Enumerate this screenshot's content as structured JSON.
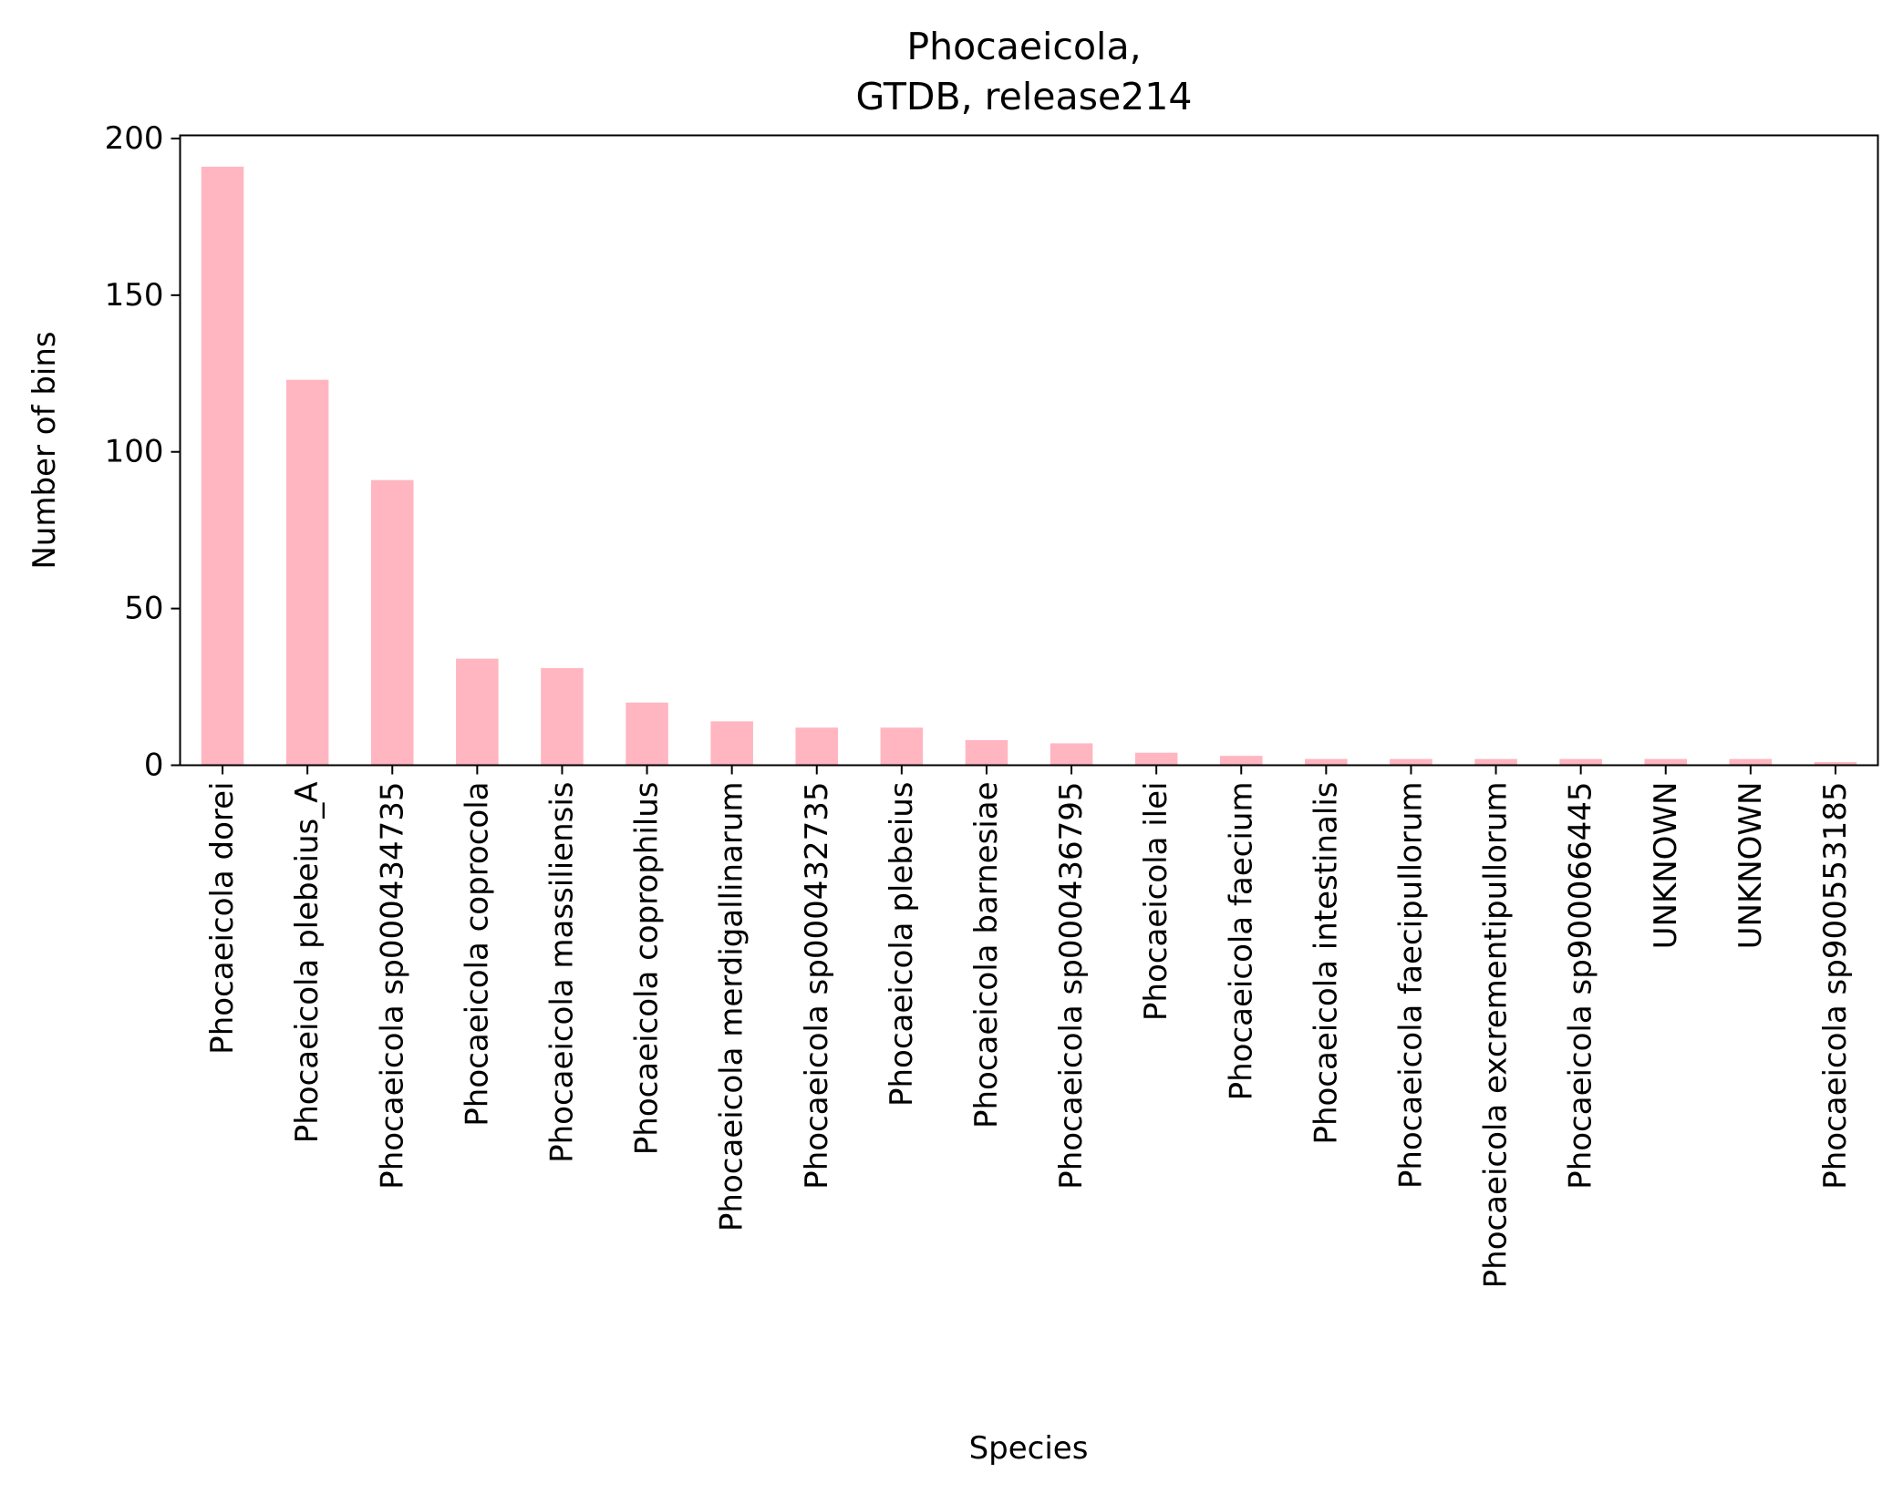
{
  "chart_data": {
    "type": "bar",
    "title": "Phocaeicola,\nGTDB, release214",
    "title_lines": [
      "Phocaeicola,",
      "GTDB, release214"
    ],
    "xlabel": "Species",
    "ylabel": "Number of bins",
    "ylim": [
      0,
      201
    ],
    "yticks": [
      0,
      50,
      100,
      150,
      200
    ],
    "grid": false,
    "legend": "none",
    "bar_color": "#ffb6c1",
    "categories": [
      "Phocaeicola dorei",
      "Phocaeicola plebeius_A",
      "Phocaeicola sp000434735",
      "Phocaeicola coprocola",
      "Phocaeicola massiliensis",
      "Phocaeicola coprophilus",
      "Phocaeicola merdigallinarum",
      "Phocaeicola sp000432735",
      "Phocaeicola plebeius",
      "Phocaeicola barnesiae",
      "Phocaeicola sp000436795",
      "Phocaeicola ilei",
      "Phocaeicola faecium",
      "Phocaeicola intestinalis",
      "Phocaeicola faecipullorum",
      "Phocaeicola excrementipullorum",
      "Phocaeicola sp900066445",
      "UNKNOWN",
      "UNKNOWN",
      "Phocaeicola sp900553185"
    ],
    "values": [
      191,
      123,
      91,
      34,
      31,
      20,
      14,
      12,
      12,
      8,
      7,
      4,
      3,
      2,
      2,
      2,
      2,
      2,
      2,
      1
    ]
  }
}
